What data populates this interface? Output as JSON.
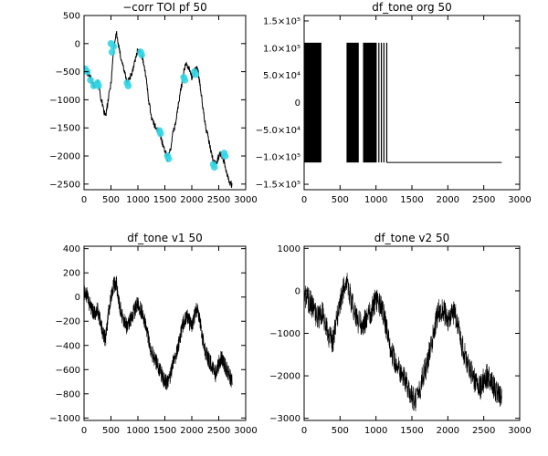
{
  "chart_data": [
    {
      "type": "scatter",
      "title": "−corr TOI pf 50",
      "xlim": [
        0,
        3000
      ],
      "ylim": [
        -2600,
        500
      ],
      "x_ticks": [
        0,
        500,
        1000,
        1500,
        2000,
        2500,
        3000
      ],
      "y_ticks": [
        {
          "value": -2500,
          "label": "−2500"
        },
        {
          "value": -2000,
          "label": "−2000"
        },
        {
          "value": -1500,
          "label": "−1500"
        },
        {
          "value": -1000,
          "label": "−1000"
        },
        {
          "value": -500,
          "label": "−500"
        },
        {
          "value": 0,
          "label": "0"
        },
        {
          "value": 500,
          "label": "500"
        }
      ],
      "grid": false,
      "line_color": "#000000",
      "marker_color": "#33d6e6",
      "series": [
        {
          "kind": "line",
          "x": [
            0,
            50,
            100,
            150,
            200,
            250,
            300,
            350,
            400,
            450,
            500,
            550,
            600,
            650,
            700,
            750,
            800,
            850,
            900,
            950,
            1000,
            1050,
            1100,
            1150,
            1200,
            1250,
            1300,
            1350,
            1400,
            1450,
            1500,
            1550,
            1600,
            1650,
            1700,
            1750,
            1800,
            1850,
            1900,
            1950,
            2000,
            2050,
            2100,
            2150,
            2200,
            2250,
            2300,
            2350,
            2400,
            2450,
            2500,
            2550,
            2600,
            2650,
            2700,
            2750
          ],
          "y": [
            -450,
            -500,
            -550,
            -700,
            -750,
            -650,
            -900,
            -1150,
            -1300,
            -1000,
            -700,
            -100,
            200,
            -100,
            -300,
            -500,
            -700,
            -600,
            -500,
            -300,
            -100,
            -150,
            -300,
            -600,
            -1000,
            -1300,
            -1450,
            -1500,
            -1600,
            -1750,
            -1900,
            -2050,
            -1900,
            -1600,
            -1400,
            -1100,
            -800,
            -500,
            -350,
            -450,
            -600,
            -500,
            -400,
            -700,
            -1100,
            -1450,
            -1650,
            -1900,
            -2100,
            -2150,
            -2000,
            -1950,
            -2100,
            -2300,
            -2450,
            -2550
          ]
        },
        {
          "kind": "markers",
          "x": [
            20,
            60,
            120,
            180,
            250,
            270,
            500,
            520,
            550,
            800,
            820,
            1050,
            1070,
            1400,
            1420,
            1550,
            1570,
            1850,
            1870,
            2050,
            2070,
            2400,
            2420,
            2600,
            2620
          ],
          "y": [
            -450,
            -500,
            -650,
            -750,
            -700,
            -750,
            0,
            -150,
            -50,
            -700,
            -750,
            -150,
            -200,
            -1550,
            -1600,
            -2000,
            -2050,
            -600,
            -650,
            -500,
            -550,
            -2150,
            -2200,
            -1950,
            -2000
          ]
        }
      ]
    },
    {
      "type": "bar",
      "title": "df_tone org 50",
      "xlim": [
        0,
        3000
      ],
      "ylim": [
        -160000,
        160000
      ],
      "x_ticks": [
        0,
        500,
        1000,
        1500,
        2000,
        2500,
        3000
      ],
      "y_ticks": [
        {
          "value": -150000,
          "label": "−1.5×10⁵"
        },
        {
          "value": -100000,
          "label": "−1.0×10⁵"
        },
        {
          "value": -50000,
          "label": "−5.0×10⁴"
        },
        {
          "value": 0,
          "label": "0"
        },
        {
          "value": 50000,
          "label": "5.0×10⁴"
        },
        {
          "value": 100000,
          "label": "1.0×10⁵"
        },
        {
          "value": 150000,
          "label": "1.5×10⁵"
        }
      ],
      "grid": false,
      "line_color": "#000000",
      "high": 110000,
      "low": -110000,
      "blocks": [
        [
          0,
          240
        ],
        [
          590,
          760
        ],
        [
          820,
          1010
        ]
      ],
      "spikes": [
        1040,
        1075,
        1110,
        1150
      ],
      "baseline_x": [
        1150,
        2750
      ]
    },
    {
      "type": "line",
      "title": "df_tone v1 50",
      "xlim": [
        0,
        3000
      ],
      "ylim": [
        -1020,
        420
      ],
      "x_ticks": [
        0,
        500,
        1000,
        1500,
        2000,
        2500,
        3000
      ],
      "y_ticks": [
        {
          "value": -1000,
          "label": "−1000"
        },
        {
          "value": -800,
          "label": "−800"
        },
        {
          "value": -600,
          "label": "−600"
        },
        {
          "value": -400,
          "label": "−400"
        },
        {
          "value": -200,
          "label": "−200"
        },
        {
          "value": 0,
          "label": "0"
        },
        {
          "value": 200,
          "label": "200"
        },
        {
          "value": 400,
          "label": "400"
        }
      ],
      "grid": false,
      "line_color": "#000000",
      "x": [
        0,
        50,
        100,
        150,
        200,
        250,
        300,
        350,
        400,
        450,
        500,
        550,
        600,
        650,
        700,
        750,
        800,
        850,
        900,
        950,
        1000,
        1050,
        1100,
        1150,
        1200,
        1250,
        1300,
        1350,
        1400,
        1450,
        1500,
        1550,
        1600,
        1650,
        1700,
        1750,
        1800,
        1850,
        1900,
        1950,
        2000,
        2050,
        2100,
        2150,
        2200,
        2250,
        2300,
        2350,
        2400,
        2450,
        2500,
        2550,
        2600,
        2650,
        2700,
        2750
      ],
      "y": [
        50,
        20,
        -50,
        -100,
        -150,
        -100,
        -200,
        -300,
        -350,
        -150,
        0,
        100,
        120,
        -50,
        -150,
        -200,
        -250,
        -200,
        -150,
        -100,
        -50,
        -100,
        -150,
        -250,
        -350,
        -450,
        -500,
        -550,
        -600,
        -650,
        -700,
        -700,
        -650,
        -550,
        -500,
        -400,
        -300,
        -200,
        -150,
        -200,
        -250,
        -150,
        -100,
        -200,
        -350,
        -450,
        -500,
        -550,
        -600,
        -650,
        -550,
        -500,
        -550,
        -600,
        -650,
        -700
      ],
      "noise_amplitude": 70
    },
    {
      "type": "line",
      "title": "df_tone v2 50",
      "xlim": [
        0,
        3000
      ],
      "ylim": [
        -3050,
        1050
      ],
      "x_ticks": [
        0,
        500,
        1000,
        1500,
        2000,
        2500,
        3000
      ],
      "y_ticks": [
        {
          "value": -3000,
          "label": "−3000"
        },
        {
          "value": -2000,
          "label": "−2000"
        },
        {
          "value": -1000,
          "label": "−1000"
        },
        {
          "value": 0,
          "label": "0"
        },
        {
          "value": 1000,
          "label": "1000"
        }
      ],
      "grid": false,
      "line_color": "#000000",
      "x": [
        0,
        50,
        100,
        150,
        200,
        250,
        300,
        350,
        400,
        450,
        500,
        550,
        600,
        650,
        700,
        750,
        800,
        850,
        900,
        950,
        1000,
        1050,
        1100,
        1150,
        1200,
        1250,
        1300,
        1350,
        1400,
        1450,
        1500,
        1550,
        1600,
        1650,
        1700,
        1750,
        1800,
        1850,
        1900,
        1950,
        2000,
        2050,
        2100,
        2150,
        2200,
        2250,
        2300,
        2350,
        2400,
        2450,
        2500,
        2550,
        2600,
        2650,
        2700,
        2750
      ],
      "y": [
        -100,
        -200,
        -300,
        -500,
        -600,
        -500,
        -800,
        -1100,
        -1200,
        -700,
        -300,
        100,
        300,
        -200,
        -500,
        -700,
        -800,
        -700,
        -600,
        -400,
        -200,
        -300,
        -500,
        -900,
        -1300,
        -1600,
        -1800,
        -1900,
        -2100,
        -2300,
        -2500,
        -2600,
        -2400,
        -2000,
        -1800,
        -1400,
        -1000,
        -600,
        -400,
        -500,
        -700,
        -600,
        -500,
        -900,
        -1300,
        -1600,
        -1800,
        -2000,
        -2200,
        -2300,
        -2100,
        -2000,
        -2100,
        -2300,
        -2400,
        -2500
      ],
      "noise_amplitude": 300
    }
  ]
}
